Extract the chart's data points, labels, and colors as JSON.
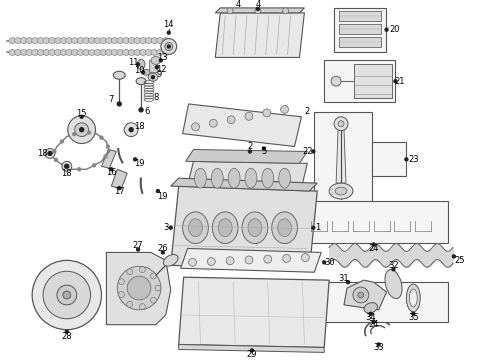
{
  "bg_color": "#ffffff",
  "lc": "#444444",
  "figsize": [
    4.9,
    3.6
  ],
  "dpi": 100,
  "label_fontsize": 6.0
}
